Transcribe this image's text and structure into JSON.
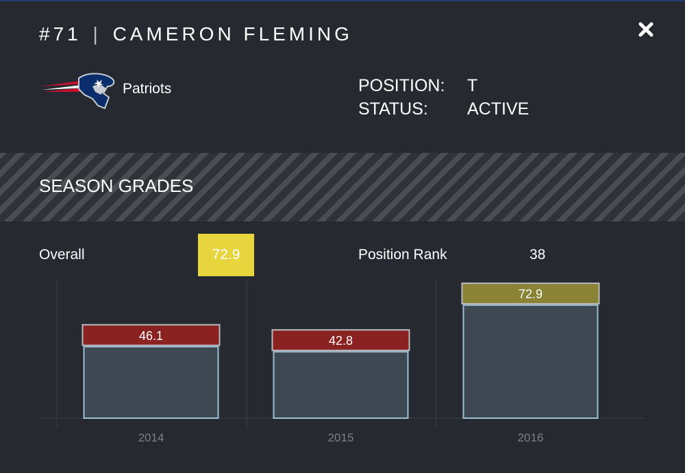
{
  "player": {
    "number": "#71",
    "separator": "|",
    "name": "CAMERON FLEMING",
    "team": "Patriots",
    "position_label": "POSITION:",
    "position_value": "T",
    "status_label": "STATUS:",
    "status_value": "ACTIVE"
  },
  "icons": {
    "close": "close-icon",
    "team_logo": "patriots-logo"
  },
  "section": {
    "title": "SEASON GRADES"
  },
  "stats": {
    "overall_label": "Overall",
    "overall_value": "72.9",
    "rank_label": "Position Rank",
    "rank_value": "38"
  },
  "colors": {
    "background": "#262a30",
    "grade_low": "#8b2222",
    "grade_mid": "#8a8336",
    "highlight": "#e8d43c",
    "bar_fill": "#3e4852",
    "bar_border": "#9cc0d4"
  },
  "chart_data": {
    "type": "bar",
    "title": "SEASON GRADES",
    "categories": [
      "2014",
      "2015",
      "2016"
    ],
    "values": [
      46.1,
      42.8,
      72.9
    ],
    "value_labels": [
      "46.1",
      "42.8",
      "72.9"
    ],
    "label_colors": [
      "#8b2222",
      "#8b2222",
      "#8a8336"
    ],
    "xlabel": "",
    "ylabel": "",
    "ylim": [
      0,
      100
    ]
  }
}
